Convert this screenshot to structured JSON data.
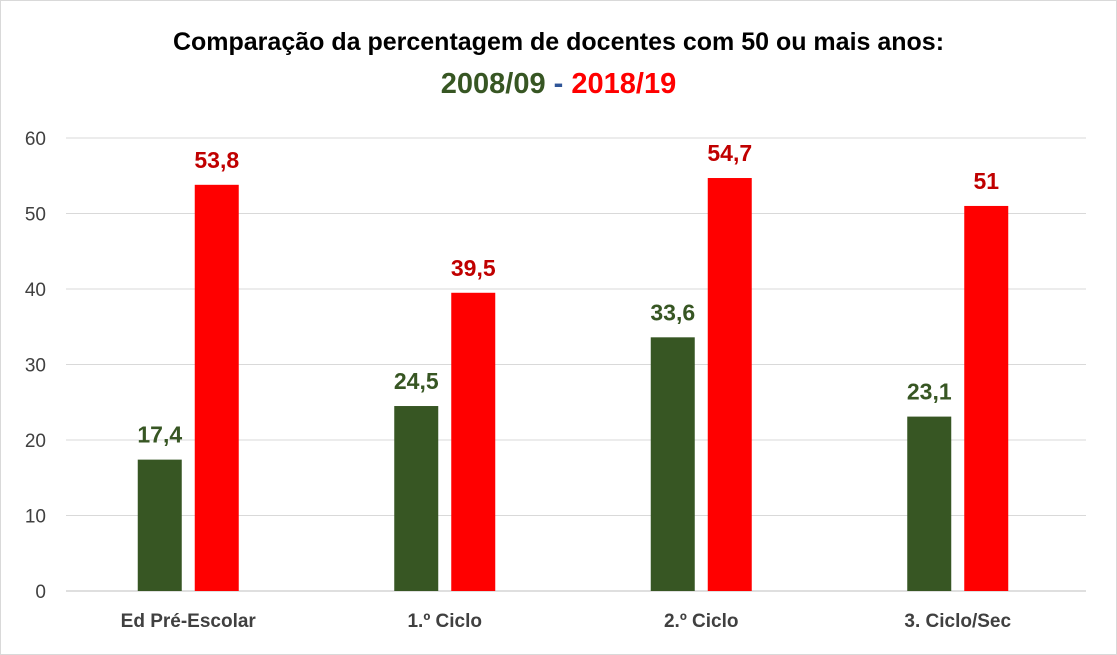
{
  "chart_data": {
    "type": "bar",
    "title": "Comparação da percentagem de docentes com 50 ou mais anos:",
    "subtitle": {
      "part1": "2008/09",
      "separator": " - ",
      "part2": "2018/19"
    },
    "categories": [
      "Ed Pré-Escolar",
      "1.º Ciclo",
      "2.º Ciclo",
      "3. Ciclo/Sec"
    ],
    "series": [
      {
        "name": "2008/09",
        "color": "#375623",
        "values": [
          17.4,
          24.5,
          33.6,
          23.1
        ],
        "labels": [
          "17,4",
          "24,5",
          "33,6",
          "23,1"
        ]
      },
      {
        "name": "2018/19",
        "color": "#ff0000",
        "values": [
          53.8,
          39.5,
          54.7,
          51
        ],
        "labels": [
          "53,8",
          "39,5",
          "54,7",
          "51"
        ]
      }
    ],
    "label_colors": [
      "#375623",
      "#c00000"
    ],
    "ylim": [
      0,
      60
    ],
    "yticks": [
      "0",
      "10",
      "20",
      "30",
      "40",
      "50",
      "60"
    ],
    "grid": true,
    "legend": "none",
    "xlabel": "",
    "ylabel": ""
  }
}
